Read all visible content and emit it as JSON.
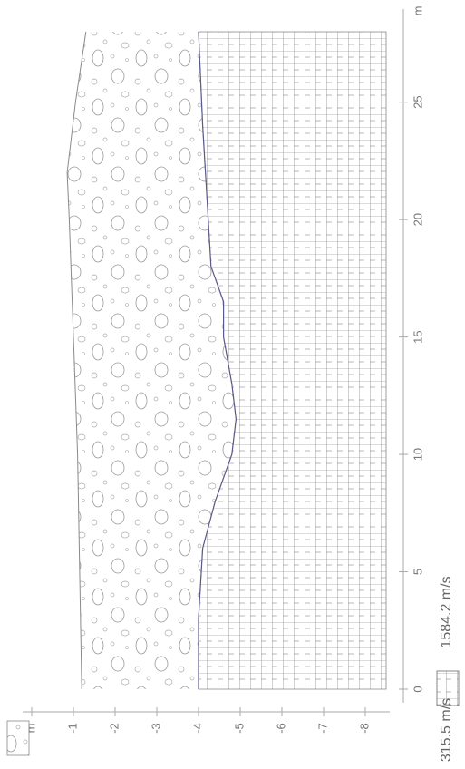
{
  "chart_data": {
    "type": "profile",
    "x_label": "m",
    "y_label": "m",
    "xlim": [
      0,
      28
    ],
    "xticks": [
      0,
      5,
      10,
      15,
      20,
      25
    ],
    "ylim": [
      0,
      -8.5
    ],
    "yticks": [
      {
        "value": 0,
        "label": "m"
      },
      -1,
      -2,
      -3,
      -4,
      -5,
      -6,
      -7,
      -8
    ],
    "surface": {
      "x": [
        0,
        5,
        10,
        15,
        20,
        22,
        25,
        28
      ],
      "values": [
        -1.2,
        -1.15,
        -1.1,
        -1.0,
        -0.9,
        -0.85,
        -1.05,
        -1.3
      ]
    },
    "interface": {
      "x": [
        0,
        3,
        6,
        8,
        10,
        11.5,
        13,
        15,
        16.5,
        18,
        21,
        24,
        28
      ],
      "values": [
        -4.0,
        -4.0,
        -4.1,
        -4.4,
        -4.8,
        -4.9,
        -4.8,
        -4.6,
        -4.6,
        -4.3,
        -4.2,
        -4.1,
        -4.0
      ]
    },
    "bottom": -8.5,
    "series": [
      {
        "name": "315.5 m/s",
        "color": "#8a8a8a"
      },
      {
        "name": "1584.2 m/s",
        "color": "#6a6a6a"
      }
    ]
  }
}
